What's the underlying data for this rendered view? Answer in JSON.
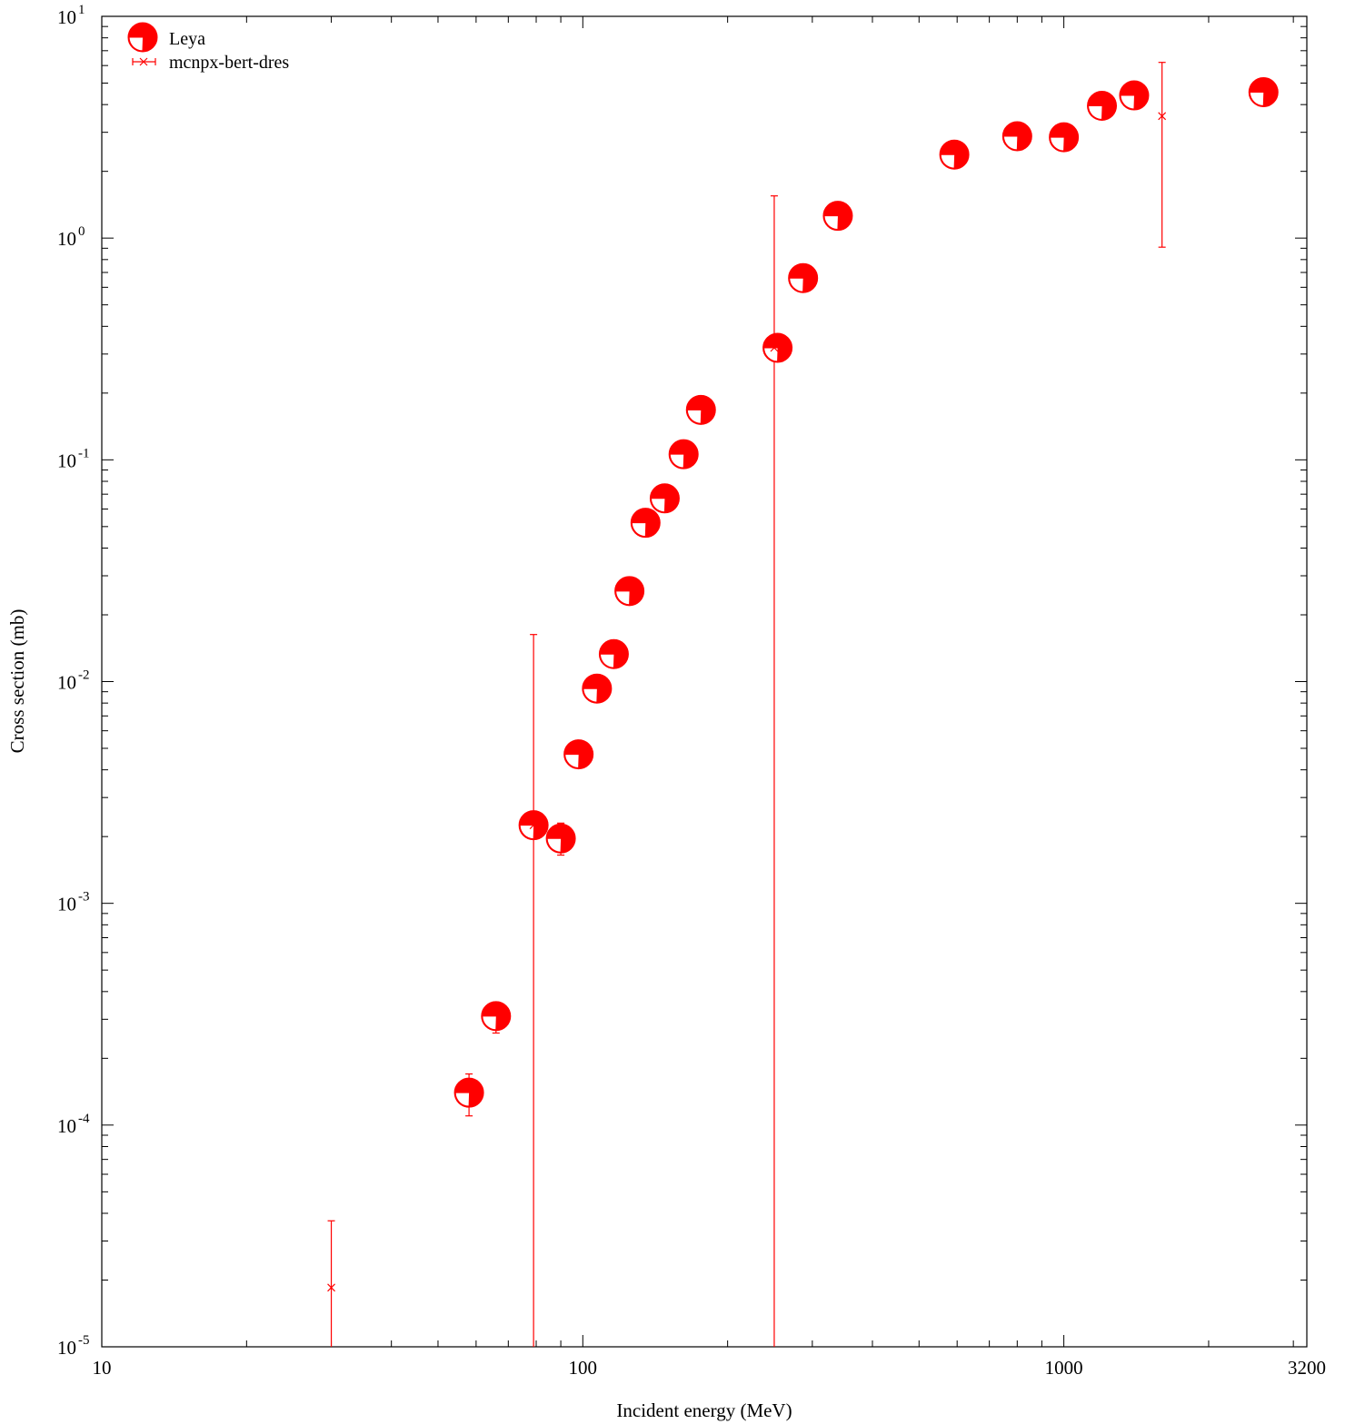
{
  "chart_data": {
    "type": "scatter",
    "title": "",
    "xlabel": "Incident energy (MeV)",
    "ylabel": "Cross section (mb)",
    "xscale": "log",
    "yscale": "log",
    "xlim": [
      10,
      3200
    ],
    "ylim": [
      1e-05,
      10
    ],
    "x_ticks": [
      {
        "value": 10,
        "label": "10"
      },
      {
        "value": 100,
        "label": "100"
      },
      {
        "value": 1000,
        "label": "1000"
      },
      {
        "value": 3200,
        "label": "3200"
      }
    ],
    "y_ticks": [
      {
        "value": 1e-05,
        "base": "10",
        "exp": "-5"
      },
      {
        "value": 0.0001,
        "base": "10",
        "exp": "-4"
      },
      {
        "value": 0.001,
        "base": "10",
        "exp": "-3"
      },
      {
        "value": 0.01,
        "base": "10",
        "exp": "-2"
      },
      {
        "value": 0.1,
        "base": "10",
        "exp": "-1"
      },
      {
        "value": 1,
        "base": "10",
        "exp": "0"
      },
      {
        "value": 10,
        "base": "10",
        "exp": "1"
      }
    ],
    "grid": false,
    "legend_position": "top-left",
    "series": [
      {
        "name": "Leya",
        "color": "#ff0000",
        "marker": "circle-quadrant",
        "points": [
          {
            "x": 58,
            "y": 0.00014,
            "ylo": 0.00011,
            "yhi": 0.00017
          },
          {
            "x": 66,
            "y": 0.00031,
            "ylo": 0.00026,
            "yhi": 0.00035
          },
          {
            "x": 79,
            "y": 0.00225,
            "ylo": 0.002,
            "yhi": 0.0025
          },
          {
            "x": 90,
            "y": 0.00196,
            "ylo": 0.00165,
            "yhi": 0.0023
          },
          {
            "x": 98,
            "y": 0.0047,
            "ylo": 0.0041,
            "yhi": 0.0052
          },
          {
            "x": 107,
            "y": 0.0093,
            "ylo": 0.0082,
            "yhi": 0.0102
          },
          {
            "x": 116,
            "y": 0.0133,
            "ylo": 0.0118,
            "yhi": 0.0146
          },
          {
            "x": 125,
            "y": 0.0256,
            "ylo": 0.0227,
            "yhi": 0.028
          },
          {
            "x": 135,
            "y": 0.052,
            "ylo": 0.046,
            "yhi": 0.057
          },
          {
            "x": 148,
            "y": 0.067,
            "ylo": 0.06,
            "yhi": 0.073
          },
          {
            "x": 162,
            "y": 0.106,
            "ylo": 0.095,
            "yhi": 0.116
          },
          {
            "x": 176,
            "y": 0.168,
            "ylo": 0.15,
            "yhi": 0.182
          },
          {
            "x": 254,
            "y": 0.32,
            "ylo": 0.285,
            "yhi": 0.35
          },
          {
            "x": 287,
            "y": 0.66,
            "ylo": 0.59,
            "yhi": 0.72
          },
          {
            "x": 339,
            "y": 1.26,
            "ylo": 1.13,
            "yhi": 1.37
          },
          {
            "x": 592,
            "y": 2.38,
            "ylo": 2.13,
            "yhi": 2.58
          },
          {
            "x": 800,
            "y": 2.88,
            "ylo": 2.58,
            "yhi": 3.12
          },
          {
            "x": 1000,
            "y": 2.85,
            "ylo": 2.55,
            "yhi": 3.1
          },
          {
            "x": 1200,
            "y": 3.95,
            "ylo": 3.55,
            "yhi": 4.3
          },
          {
            "x": 1400,
            "y": 4.4,
            "ylo": 3.95,
            "yhi": 4.75
          },
          {
            "x": 2600,
            "y": 4.55,
            "ylo": 4.1,
            "yhi": 4.95
          }
        ]
      },
      {
        "name": "mcnpx-bert-dres",
        "color": "#ff0000",
        "marker": "x-errorbar",
        "points": [
          {
            "x": 30,
            "y": 1.85e-05,
            "ylo": 1e-05,
            "yhi": 3.7e-05
          },
          {
            "x": 79,
            "y": 0.00225,
            "ylo": 1e-05,
            "yhi": 0.0163
          },
          {
            "x": 250,
            "y": 0.32,
            "ylo": 1e-05,
            "yhi": 1.55
          },
          {
            "x": 1600,
            "y": 3.55,
            "ylo": 0.91,
            "yhi": 6.2
          }
        ]
      }
    ]
  }
}
